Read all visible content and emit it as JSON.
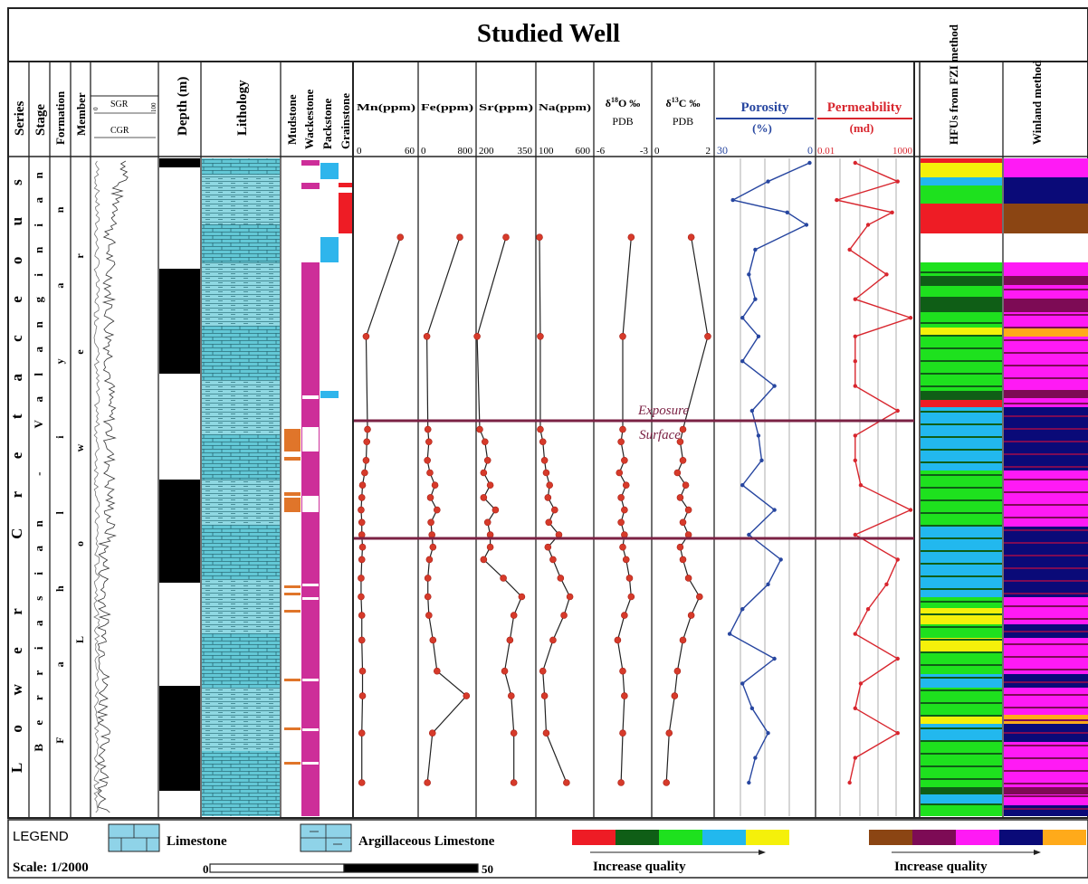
{
  "title": "Studied Well",
  "headers": {
    "series": "Series",
    "stage": "Stage",
    "formation": "Formation",
    "member": "Member",
    "sgr": "SGR",
    "cgr": "CGR",
    "sgr_min": "0",
    "sgr_max": "100",
    "depth": "Depth (m)",
    "lithology": "Lithology",
    "mudstone": "Mudstone",
    "wackestone": "Wackestone",
    "packstone": "Packstone",
    "grainstone": "Grainstone",
    "hfu": "HFUs from FZI method",
    "winland": "Winland method"
  },
  "strat": {
    "series_letters": [
      "L",
      "o",
      "w",
      "e",
      "r",
      " ",
      "C",
      "r",
      "e",
      "t",
      "a",
      "c",
      "e",
      "o",
      "u",
      "s"
    ],
    "stage_letters": [
      "B",
      "e",
      "r",
      "r",
      "i",
      "a",
      "s",
      "i",
      "a",
      "n",
      " ",
      "-",
      " ",
      "V",
      "a",
      "l",
      "a",
      "n",
      "g",
      "i",
      "n",
      "i",
      "a",
      "n"
    ],
    "formation_letters": [
      "F",
      "a",
      "h",
      "l",
      "i",
      "y",
      "a",
      "n"
    ],
    "member_letters": [
      "L",
      "o",
      "w",
      "e",
      "r"
    ]
  },
  "logs": [
    {
      "label": "Mn(ppm)",
      "min": "0",
      "mid": "60",
      "xlim": [
        0,
        80
      ],
      "color": "#222222"
    },
    {
      "label": "Fe(ppm)",
      "min": "0",
      "mid": "800",
      "xlim": [
        0,
        1000
      ],
      "color": "#222222"
    },
    {
      "label": "Sr(ppm)",
      "min": "200",
      "mid": "350",
      "xlim": [
        200,
        400
      ],
      "color": "#222222"
    },
    {
      "label": "Na(ppm)",
      "min": "100",
      "mid": "600",
      "xlim": [
        100,
        700
      ],
      "color": "#222222"
    },
    {
      "label": "δ18O ‰ PDB",
      "sym": "δ",
      "sup": "18",
      "el": "O ‰",
      "sub": "PDB",
      "min": "-6",
      "mid": "-3",
      "xlim": [
        -6,
        -3
      ],
      "color": "#222222"
    },
    {
      "label": "δ13C ‰ PDB",
      "sym": "δ",
      "sup": "13",
      "el": "C ‰",
      "sub": "PDB",
      "min": "0",
      "mid": "2",
      "xlim": [
        0,
        2
      ],
      "color": "#222222"
    }
  ],
  "porosity": {
    "label": "Porosity",
    "unit": "(%)",
    "min": "30",
    "max": "0",
    "color": "#2746a0"
  },
  "permeability": {
    "label": "Permeability",
    "unit": "(md)",
    "min": "0.01",
    "max": "1000",
    "color": "#d8262e"
  },
  "annotation": {
    "line1": "Exposure",
    "line2": "Surface",
    "color": "#7b2244"
  },
  "legend": {
    "label": "LEGEND",
    "limestone": "Limestone",
    "argillaceous": "Argillaceous Limestone",
    "scale": "Scale: 1/2000",
    "scale_min": "0",
    "scale_max": "50",
    "increase_quality": "Increase quality",
    "hfu_colors": [
      "#ee1c25",
      "#0f5e16",
      "#1ee11e",
      "#22b8ee",
      "#f5f00a"
    ],
    "winland_colors": [
      "#8b4513",
      "#7d0b55",
      "#ff1af5",
      "#0a0a78",
      "#ffaa1a"
    ]
  },
  "chart_data": {
    "type": "scatter",
    "y_axis": "relative depth (0 = top of log, 1 = base of log)",
    "geochem_depth": [
      0.12,
      0.28,
      0.43,
      0.45,
      0.48,
      0.5,
      0.52,
      0.54,
      0.56,
      0.58,
      0.6,
      0.62,
      0.64,
      0.67,
      0.7,
      0.73,
      0.77,
      0.82,
      0.86,
      0.92,
      1.0
    ],
    "series": [
      {
        "name": "Mn(ppm)",
        "values": [
          60,
          12,
          14,
          13,
          12,
          10,
          7,
          6,
          5,
          6,
          6,
          7,
          6,
          5,
          5,
          6,
          6,
          7,
          7,
          6,
          6
        ]
      },
      {
        "name": "Fe(ppm)",
        "values": [
          750,
          100,
          120,
          140,
          110,
          160,
          260,
          170,
          300,
          180,
          200,
          220,
          150,
          120,
          120,
          140,
          220,
          300,
          880,
          210,
          110
        ]
      },
      {
        "name": "Sr(ppm)",
        "values": [
          300,
          190,
          200,
          220,
          230,
          215,
          240,
          215,
          260,
          230,
          240,
          240,
          215,
          290,
          360,
          330,
          315,
          295,
          320,
          330,
          330
        ]
      },
      {
        "name": "Na(ppm)",
        "values": [
          100,
          110,
          110,
          140,
          160,
          180,
          220,
          200,
          280,
          210,
          330,
          200,
          260,
          350,
          460,
          390,
          260,
          140,
          160,
          180,
          420
        ]
      },
      {
        "name": "δ18O ‰ PDB",
        "values": [
          -4.0,
          -4.5,
          -4.5,
          -4.6,
          -4.4,
          -4.7,
          -4.3,
          -4.6,
          -4.4,
          -4.6,
          -4.4,
          -4.5,
          -4.3,
          -4.1,
          -4.0,
          -4.4,
          -4.8,
          -4.5,
          -4.4,
          -4.5,
          -4.6
        ]
      },
      {
        "name": "δ13C ‰ PDB",
        "values": [
          1.3,
          1.9,
          1.0,
          0.9,
          1.0,
          0.8,
          1.1,
          0.9,
          1.2,
          1.0,
          1.2,
          0.9,
          1.0,
          1.2,
          1.6,
          1.3,
          1.0,
          0.8,
          0.7,
          0.5,
          0.4
        ]
      }
    ],
    "porosity": {
      "xlim": [
        30,
        0
      ],
      "depth": [
        0.0,
        0.03,
        0.06,
        0.08,
        0.1,
        0.14,
        0.18,
        0.22,
        0.25,
        0.28,
        0.32,
        0.36,
        0.4,
        0.44,
        0.48,
        0.52,
        0.56,
        0.6,
        0.64,
        0.68,
        0.72,
        0.76,
        0.8,
        0.84,
        0.88,
        0.92,
        0.96,
        1.0
      ],
      "values": [
        1,
        14,
        25,
        8,
        2,
        18,
        20,
        18,
        22,
        17,
        22,
        12,
        19,
        17,
        16,
        22,
        12,
        20,
        10,
        14,
        22,
        26,
        12,
        22,
        19,
        14,
        18,
        20
      ]
    },
    "permeability": {
      "xlim": [
        0.01,
        1000
      ],
      "depth": [
        0.0,
        0.03,
        0.06,
        0.08,
        0.1,
        0.14,
        0.18,
        0.22,
        0.25,
        0.28,
        0.32,
        0.36,
        0.4,
        0.44,
        0.48,
        0.52,
        0.56,
        0.6,
        0.64,
        0.68,
        0.72,
        0.76,
        0.8,
        0.84,
        0.88,
        0.92,
        0.96,
        1.0
      ],
      "values": [
        1,
        200,
        0.1,
        100,
        5,
        0.5,
        50,
        1,
        1000,
        1,
        1,
        1,
        200,
        1,
        1,
        2,
        1000,
        1,
        200,
        50,
        5,
        1,
        200,
        2,
        1,
        200,
        1,
        0.5
      ]
    },
    "zones": [
      "Exposure Surface"
    ]
  }
}
